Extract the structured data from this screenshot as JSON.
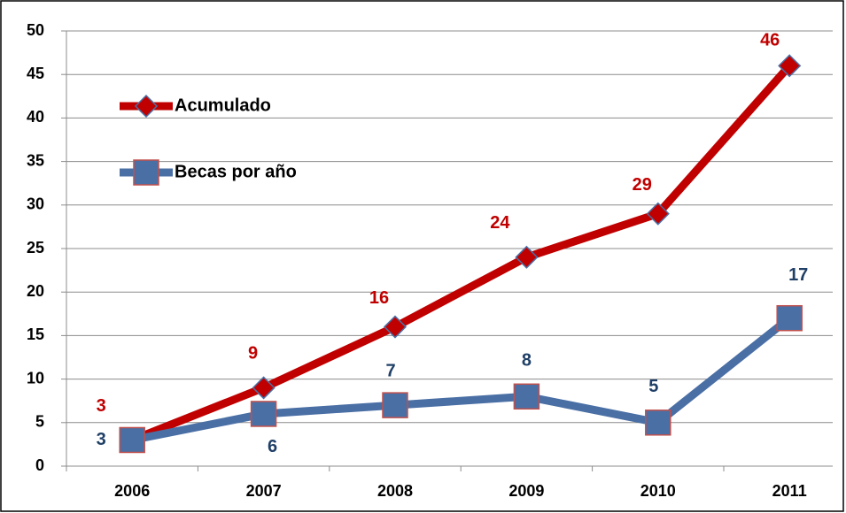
{
  "chart_data": {
    "type": "line",
    "categories": [
      "2006",
      "2007",
      "2008",
      "2009",
      "2010",
      "2011"
    ],
    "series": [
      {
        "name": "Acumulado",
        "color": "#c00000",
        "marker_edge": "#4a6fa5",
        "marker": "diamond",
        "label_color": "#c00000",
        "values": [
          3,
          9,
          16,
          24,
          29,
          46
        ]
      },
      {
        "name": "Becas por año",
        "color": "#4a6fa5",
        "marker_edge": "#c0504d",
        "marker": "square",
        "label_color": "#1f3f66",
        "values": [
          3,
          6,
          7,
          8,
          5,
          17
        ]
      }
    ],
    "ylim": [
      0,
      50
    ],
    "yticks": [
      0,
      5,
      10,
      15,
      20,
      25,
      30,
      35,
      40,
      45,
      50
    ],
    "grid": true,
    "legend": "upper left"
  }
}
